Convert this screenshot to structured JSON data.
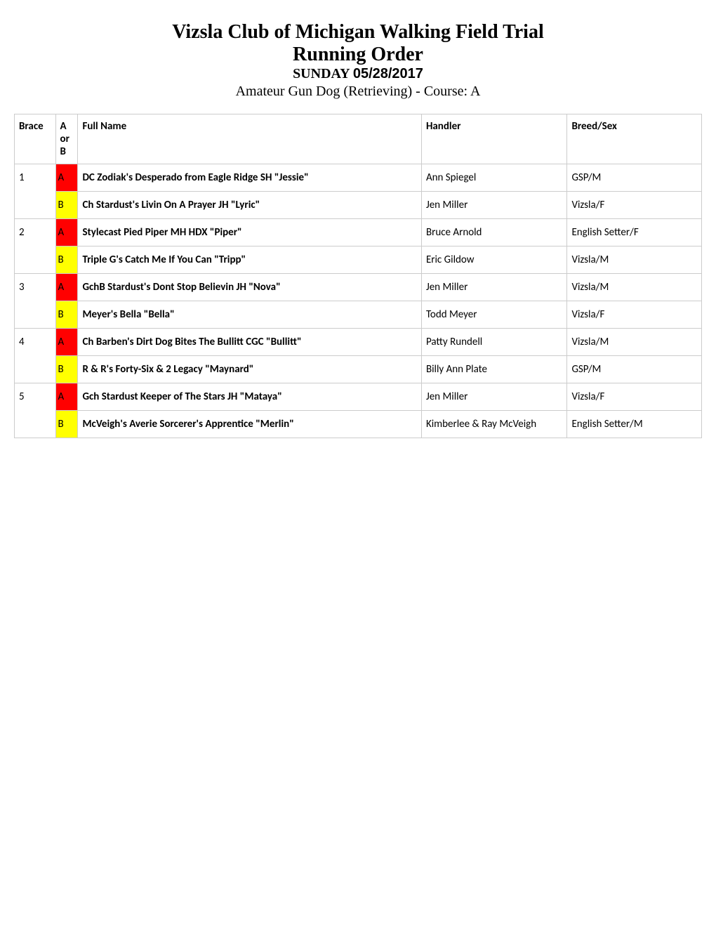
{
  "header": {
    "title_line1": "Vizsla Club of Michigan Walking Field Trial",
    "title_line2": "Running Order",
    "day_label": "SUNDAY ",
    "date": "05/28/2017",
    "subtitle": "Amateur Gun Dog (Retrieving) - Course: A"
  },
  "table": {
    "columns": {
      "brace": "Brace",
      "ab": "A or B",
      "full_name": "Full Name",
      "handler": "Handler",
      "breed_sex": "Breed/Sex"
    },
    "column_widths": {
      "brace": 55,
      "ab": 30,
      "full_name": 460,
      "handler": 195,
      "breed_sex": 180
    },
    "braces": [
      {
        "number": "1",
        "a": {
          "full_name": "DC Zodiak's Desperado from Eagle Ridge SH \"Jessie\"",
          "handler": "Ann Spiegel",
          "breed_sex": "GSP/M"
        },
        "b": {
          "full_name": "Ch Stardust's Livin On A Prayer JH \"Lyric\"",
          "handler": "Jen Miller",
          "breed_sex": "Vizsla/F"
        }
      },
      {
        "number": "2",
        "a": {
          "full_name": "Stylecast Pied Piper MH HDX \"Piper\"",
          "handler": "Bruce Arnold",
          "breed_sex": "English Setter/F"
        },
        "b": {
          "full_name": "Triple G's Catch Me If You Can \"Tripp\"",
          "handler": "Eric Gildow",
          "breed_sex": "Vizsla/M"
        }
      },
      {
        "number": "3",
        "a": {
          "full_name": "GchB Stardust's Dont Stop Believin JH \"Nova\"",
          "handler": "Jen Miller",
          "breed_sex": "Vizsla/M"
        },
        "b": {
          "full_name": "Meyer's Bella \"Bella\"",
          "handler": "Todd Meyer",
          "breed_sex": "Vizsla/F"
        }
      },
      {
        "number": "4",
        "a": {
          "full_name": "Ch Barben's Dirt Dog Bites The Bullitt CGC \"Bullitt\"",
          "handler": "Patty Rundell",
          "breed_sex": "Vizsla/M"
        },
        "b": {
          "full_name": "R & R's Forty-Six & 2 Legacy \"Maynard\"",
          "handler": "Billy Ann Plate",
          "breed_sex": "GSP/M"
        }
      },
      {
        "number": "5",
        "a": {
          "full_name": "Gch Stardust Keeper of The Stars JH \"Mataya\"",
          "handler": "Jen Miller",
          "breed_sex": "Vizsla/F"
        },
        "b": {
          "full_name": "McVeigh's Averie Sorcerer's Apprentice \"Merlin\"",
          "handler": "Kimberlee & Ray McVeigh",
          "breed_sex": "English Setter/M"
        }
      }
    ]
  },
  "colors": {
    "cell_a_bg": "#ff0000",
    "cell_b_bg": "#ffff00",
    "border": "#cccccc",
    "text": "#000000",
    "background": "#ffffff"
  }
}
